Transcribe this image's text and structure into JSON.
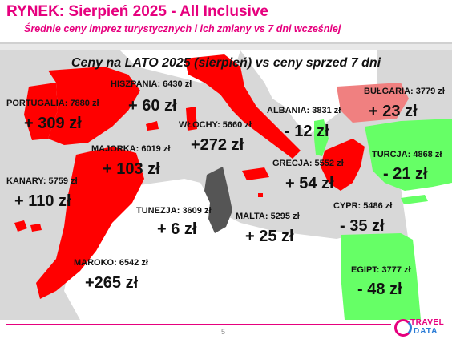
{
  "header": {
    "title": "RYNEK: Sierpień 2025 - All Inclusive",
    "subtitle": "Średnie ceny imprez turystycznych i ich zmiany vs 7 dni wcześniej"
  },
  "map": {
    "heading": "Ceny na LATO 2025 (sierpień) vs ceny sprzed 7 dni",
    "colors": {
      "sea": "#d8d8d8",
      "land": "#ffffff",
      "increase": "#ff0000",
      "small_increase": "#f08080",
      "decrease": "#66ff66",
      "neutral": "#555555"
    },
    "destinations": [
      {
        "id": "portugalia",
        "label": "PORTUGALIA: 7880 zł",
        "change": "+ 309 zł",
        "status": "increase"
      },
      {
        "id": "hiszpania",
        "label": "HISZPANIA: 6430 zł",
        "change": "+ 60 zł",
        "status": "increase"
      },
      {
        "id": "wlochy",
        "label": "WŁOCHY: 5660 zł",
        "change": "+272 zł",
        "status": "increase"
      },
      {
        "id": "albania",
        "label": "ALBANIA: 3831 zł",
        "change": "- 12 zł",
        "status": "decrease"
      },
      {
        "id": "bulgaria",
        "label": "BUŁGARIA: 3779 zł",
        "change": "+ 23 zł",
        "status": "small_increase"
      },
      {
        "id": "majorka",
        "label": "MAJORKA: 6019 zł",
        "change": "+ 103 zł",
        "status": "increase"
      },
      {
        "id": "turcja",
        "label": "TURCJA: 4868 zł",
        "change": "- 21 zł",
        "status": "decrease"
      },
      {
        "id": "kanary",
        "label": "KANARY: 5759 zł",
        "change": "+ 110 zł",
        "status": "increase"
      },
      {
        "id": "grecja",
        "label": "GRECJA: 5552 zł",
        "change": "+ 54 zł",
        "status": "increase"
      },
      {
        "id": "tunezja",
        "label": "TUNEZJA: 3609 zł",
        "change": "+ 6 zł",
        "status": "neutral"
      },
      {
        "id": "malta",
        "label": "MALTA: 5295 zł",
        "change": "+ 25 zł",
        "status": "increase"
      },
      {
        "id": "cypr",
        "label": "CYPR: 5486 zł",
        "change": "- 35 zł",
        "status": "decrease"
      },
      {
        "id": "maroko",
        "label": "MAROKO: 6542 zł",
        "change": "+265 zł",
        "status": "increase"
      },
      {
        "id": "egipt",
        "label": "EGIPT: 3777 zł",
        "change": "- 48 zł",
        "status": "decrease"
      }
    ]
  },
  "footer": {
    "page_number": "5",
    "logo_top": "TRAVEL",
    "logo_bottom": "DATA"
  }
}
